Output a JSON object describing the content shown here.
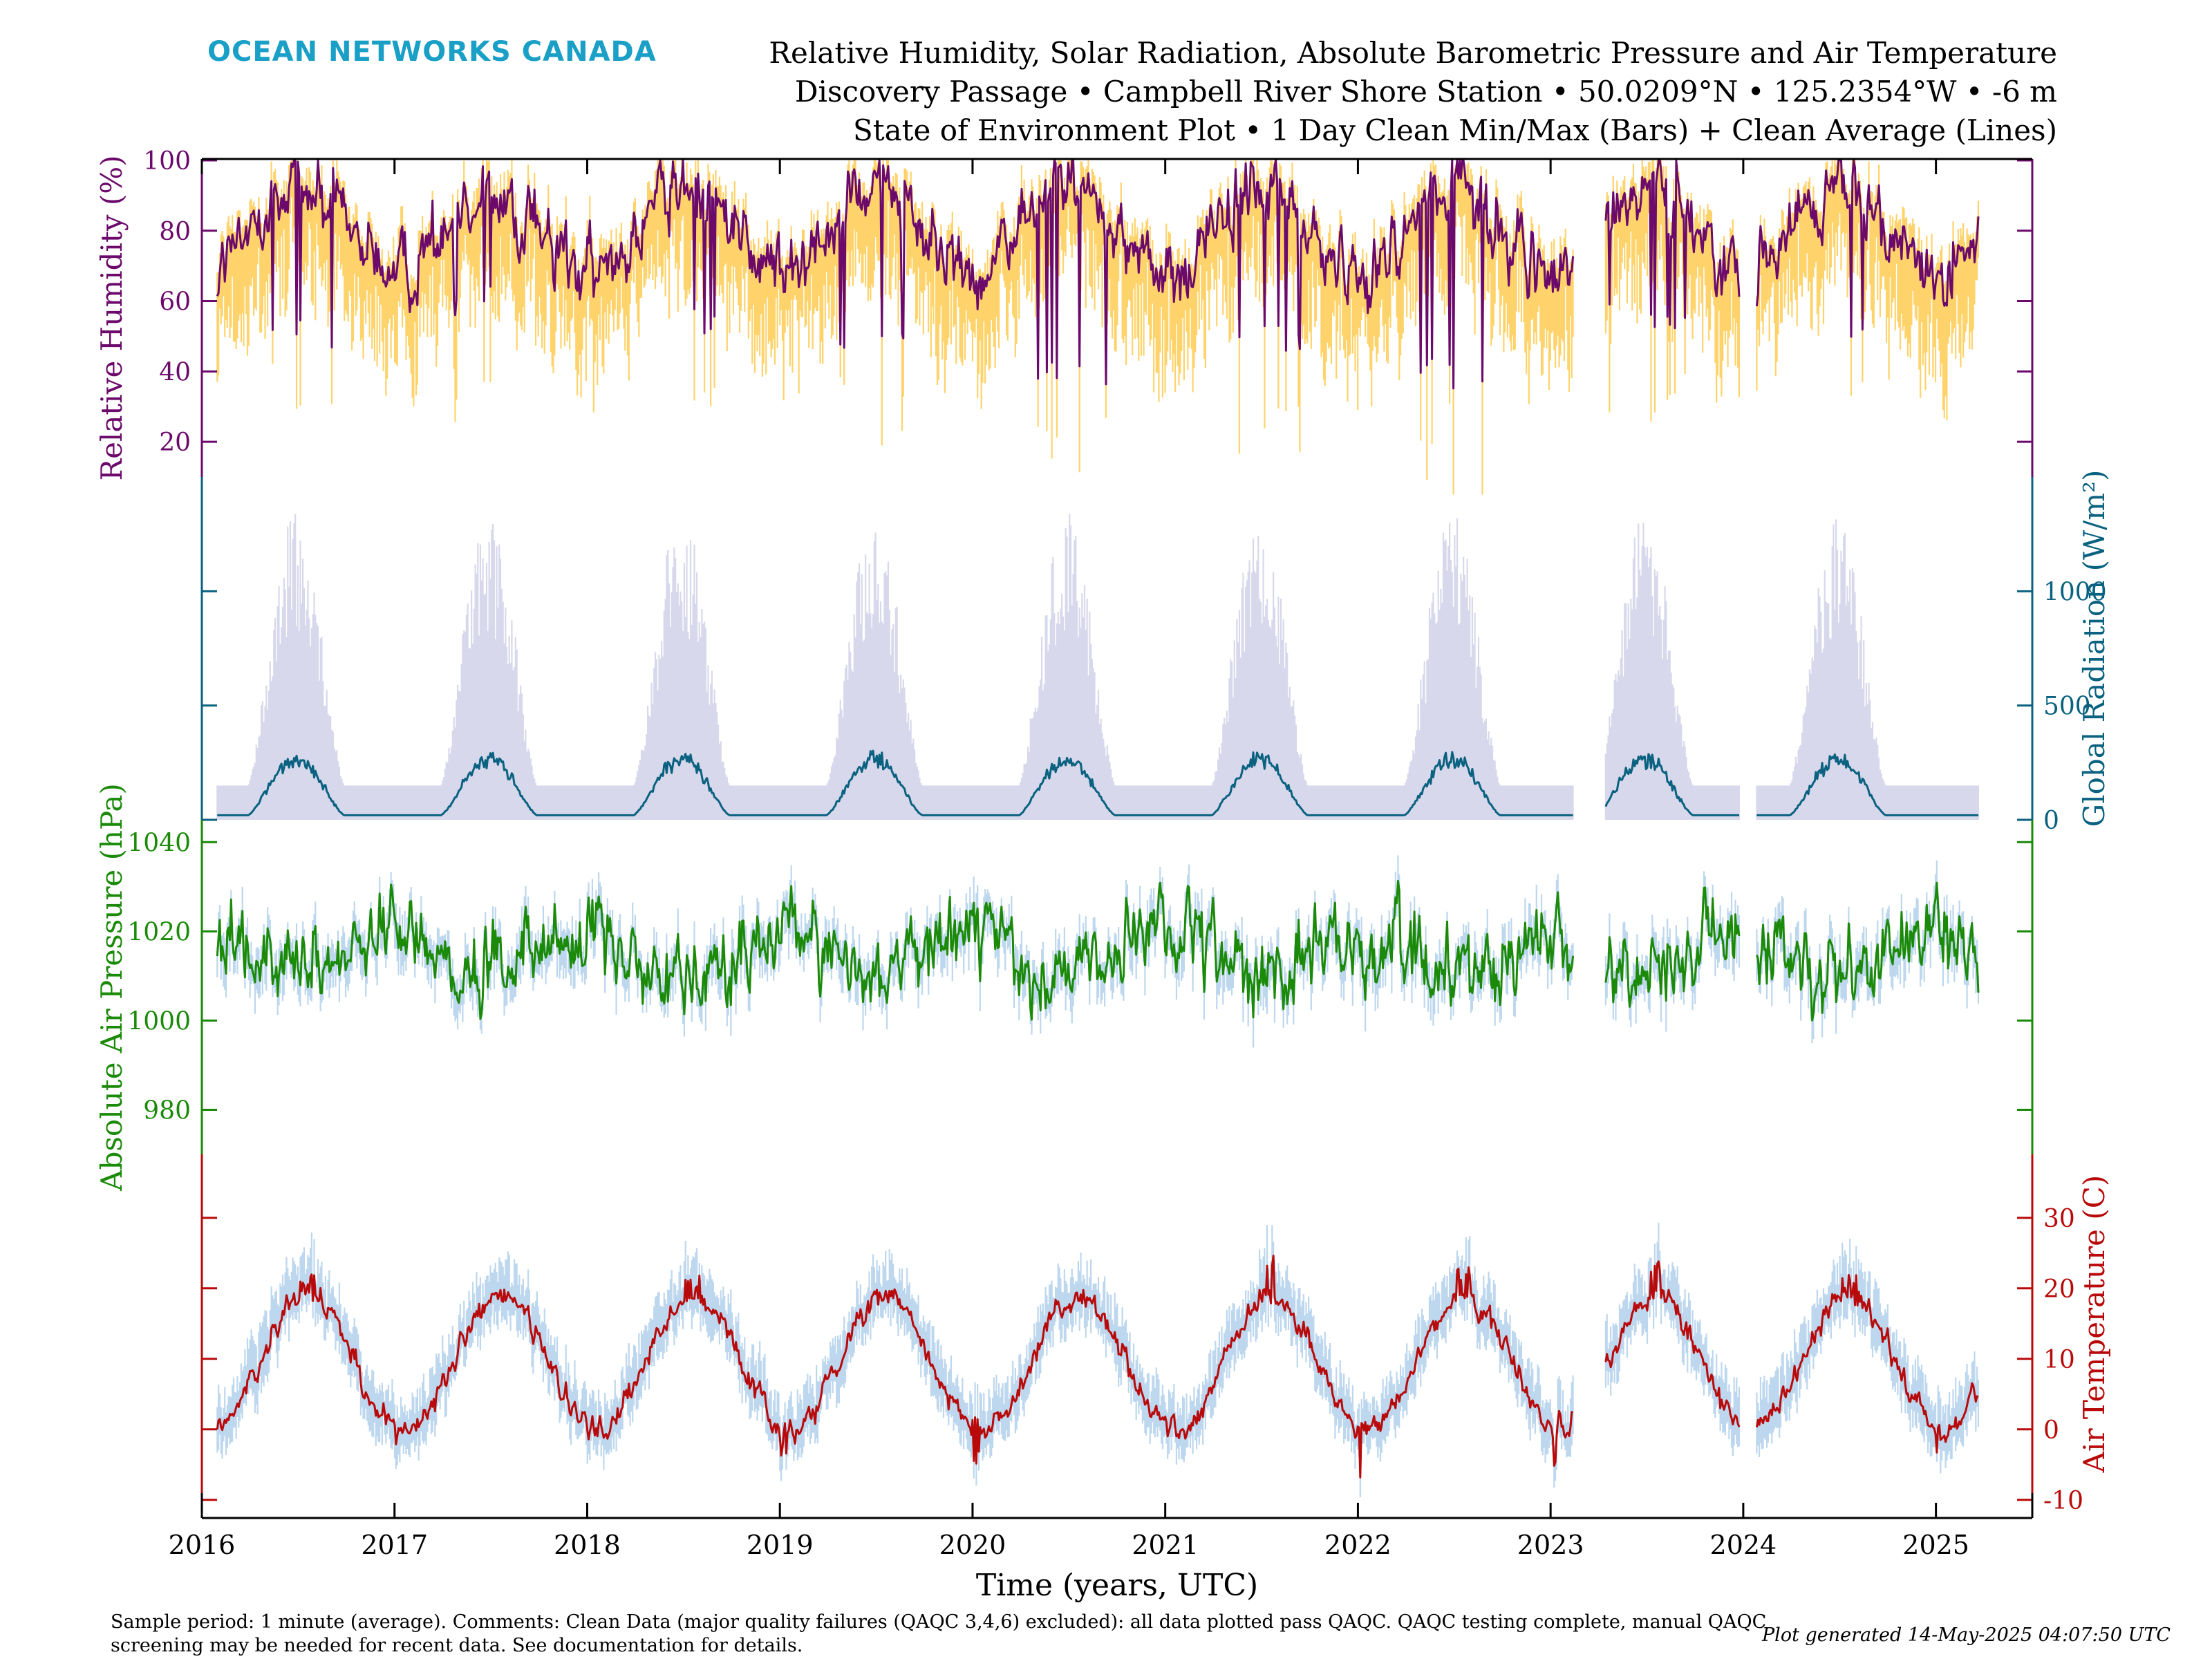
{
  "header": {
    "logo_text": "OCEAN NETWORKS CANADA",
    "title_line1": "Relative Humidity, Solar Radiation, Absolute Barometric Pressure and Air Temperature",
    "title_line2": "Discovery Passage • Campbell River Shore Station • 50.0209°N • 125.2354°W • -6 m",
    "title_line3": "State of Environment Plot • 1 Day Clean Min/Max (Bars) + Clean Average (Lines)"
  },
  "footer": {
    "notes": "Sample period: 1 minute (average). Comments: Clean Data (major quality failures (QAQC 3,4,6) excluded): all data plotted pass QAQC. QAQC testing complete, manual QAQC screening may be needed for recent data. See documentation for details.",
    "generated": "Plot generated 14-May-2025 04:07:50 UTC"
  },
  "chart_data": {
    "type": "line",
    "xlabel": "Time (years, UTC)",
    "x_ticks": [
      "2016",
      "2017",
      "2018",
      "2019",
      "2020",
      "2021",
      "2022",
      "2023",
      "2024",
      "2025"
    ],
    "xlim": [
      2016.0,
      2025.5
    ],
    "data_range": [
      2016.08,
      2025.22
    ],
    "gaps": [
      [
        2023.12,
        2023.28
      ],
      [
        2023.98,
        2024.07
      ]
    ],
    "panels": [
      {
        "id": "humidity",
        "ylabel": "Relative Humidity (%)",
        "ylabel_side": "left",
        "y_ticks": [
          "20",
          "40",
          "60",
          "80",
          "100"
        ],
        "ylim": [
          10,
          100
        ],
        "avg_color": "#6b0a6b",
        "bar_color": "#ffd36b",
        "mean": 80,
        "seasonal_amp": 12,
        "seasonal_phase": 0.5,
        "noise": 9,
        "bar_spread_low": 28,
        "bar_spread_high": 6,
        "clip": [
          5,
          100
        ],
        "annual_peaks": [
          {
            "year": 2016,
            "avg_min": 45
          },
          {
            "year": 2017,
            "avg_min": 55
          },
          {
            "year": 2018,
            "avg_min": 50
          },
          {
            "year": 2019,
            "avg_min": 45
          },
          {
            "year": 2020,
            "avg_min": 35
          },
          {
            "year": 2021,
            "avg_min": 45
          },
          {
            "year": 2022,
            "avg_min": 35
          },
          {
            "year": 2023,
            "avg_min": 50
          },
          {
            "year": 2024,
            "avg_min": 45
          }
        ]
      },
      {
        "id": "radiation",
        "ylabel": "Global Radiation (W/m²)",
        "ylabel_side": "right",
        "y_ticks": [
          "0",
          "500",
          "1000"
        ],
        "ylim": [
          0,
          1500
        ],
        "avg_color": "#0a6280",
        "bar_color": "#d8d8ec",
        "annual_avg_peak": 310,
        "annual_max_peak": 1350,
        "winter_avg": 20,
        "winter_max": 150
      },
      {
        "id": "pressure",
        "ylabel": "Absolute Air Pressure (hPa)",
        "ylabel_side": "left",
        "y_ticks": [
          "980",
          "1000",
          "1020",
          "1040"
        ],
        "ylim": [
          970,
          1045
        ],
        "avg_color": "#1a8a08",
        "bar_color": "#bdd7ee",
        "mean": 1015,
        "seasonal_amp": 4,
        "seasonal_phase": 0.0,
        "noise": 8,
        "bar_spread_low": 6,
        "bar_spread_high": 5,
        "clip": [
          975,
          1042
        ]
      },
      {
        "id": "temperature",
        "ylabel": "Air Temperature (C)",
        "ylabel_side": "right",
        "y_ticks": [
          "-10",
          "0",
          "10",
          "20",
          "30"
        ],
        "ylim": [
          -11,
          39
        ],
        "avg_color": "#b80a0a",
        "bar_color": "#bdd7ee",
        "mean": 9.5,
        "seasonal_amp": 9.5,
        "seasonal_phase": 0.55,
        "noise": 1.6,
        "bar_spread_low": 4,
        "bar_spread_high": 5,
        "clip": [
          -10,
          36
        ],
        "summer_peaks": [
          {
            "year": 2016,
            "max": 22
          },
          {
            "year": 2017,
            "max": 21
          },
          {
            "year": 2018,
            "max": 22
          },
          {
            "year": 2019,
            "max": 20
          },
          {
            "year": 2020,
            "max": 19
          },
          {
            "year": 2021,
            "max": 25
          },
          {
            "year": 2022,
            "max": 23
          },
          {
            "year": 2023,
            "max": 24
          },
          {
            "year": 2024,
            "max": 22
          }
        ],
        "winter_lows": [
          {
            "year": 2017,
            "min": -3
          },
          {
            "year": 2019,
            "min": -4
          },
          {
            "year": 2020,
            "min": -5
          },
          {
            "year": 2022,
            "min": -8
          },
          {
            "year": 2023,
            "min": -6
          },
          {
            "year": 2025,
            "min": -4
          }
        ]
      }
    ]
  }
}
